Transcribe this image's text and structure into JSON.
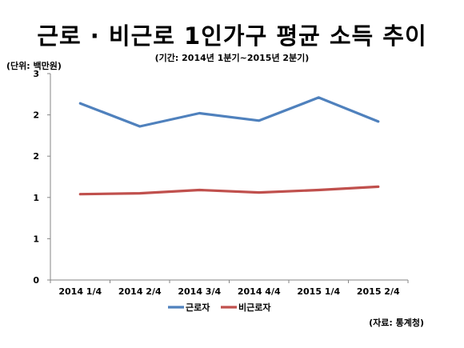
{
  "title": "근로 · 비근로 1인가구 평균 소득 추이",
  "subtitle": "(기간: 2014년 1분기~2015년 2분기)",
  "unit": "(단위: 백만원)",
  "source": "(자료: 통계청)",
  "chart_data": {
    "type": "line",
    "x": [
      "2014 1/4",
      "2014 2/4",
      "2014 3/4",
      "2014 4/4",
      "2015 1/4",
      "2015 2/4"
    ],
    "y_tick_labels": [
      "0",
      "1",
      "1",
      "2",
      "2",
      "3"
    ],
    "ylim": [
      0,
      2.5
    ],
    "y_tick_step": 0.5,
    "series": [
      {
        "name": "근로자",
        "color": "#4f81bd",
        "values": [
          2.14,
          1.86,
          2.02,
          1.93,
          2.21,
          1.92
        ]
      },
      {
        "name": "비근로자",
        "color": "#c0504d",
        "values": [
          1.04,
          1.05,
          1.09,
          1.06,
          1.09,
          1.13
        ]
      }
    ],
    "grid": false,
    "legend": "bottom"
  }
}
